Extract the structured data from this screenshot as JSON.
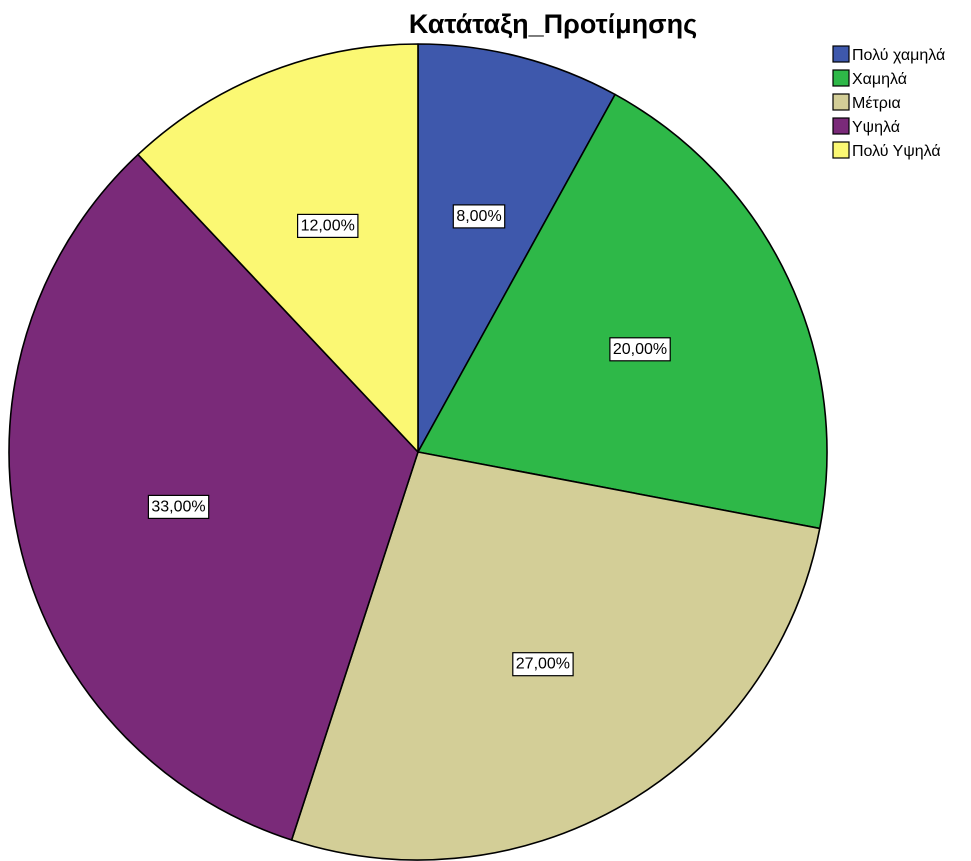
{
  "chart_data": {
    "type": "pie",
    "title": "Κατάταξη_Προτίμησης",
    "legend_position": "top-right",
    "start_angle_deg": 0,
    "direction": "clockwise",
    "slices": [
      {
        "name": "Πολύ χαμηλά",
        "value": 8,
        "label": "8,00%",
        "color": "#3E58AC"
      },
      {
        "name": "Χαμηλά",
        "value": 20,
        "label": "20,00%",
        "color": "#2EB848"
      },
      {
        "name": "Μέτρια",
        "value": 27,
        "label": "27,00%",
        "color": "#D3CE97"
      },
      {
        "name": "Υψηλά",
        "value": 33,
        "label": "33,00%",
        "color": "#7A2A79"
      },
      {
        "name": "Πολύ Υψηλά",
        "value": 12,
        "label": "12,00%",
        "color": "#FBF873"
      }
    ]
  }
}
